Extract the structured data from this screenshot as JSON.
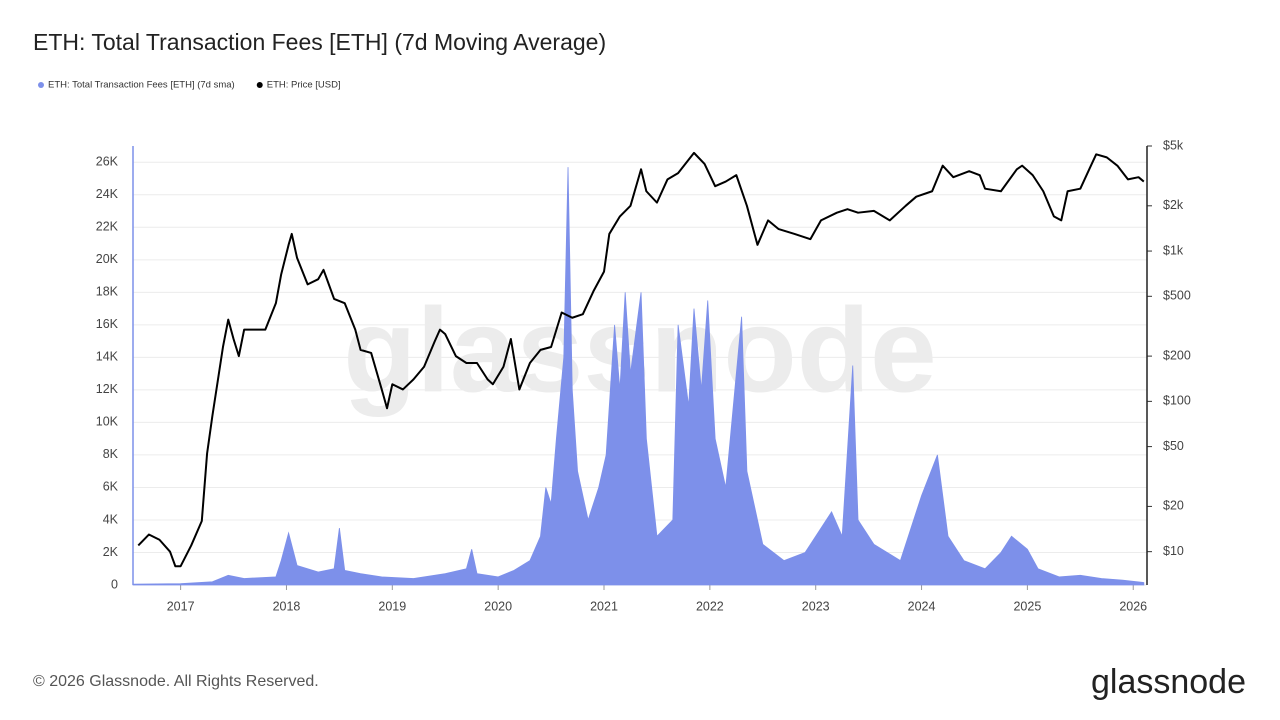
{
  "chart_data": {
    "type": "line",
    "title": "ETH: Total Transaction Fees [ETH] (7d Moving Average)",
    "watermark": "glassnode",
    "footer": "© 2026 Glassnode. All Rights Reserved.",
    "logo": "glassnode",
    "xlim": [
      2016.55,
      2026.13
    ],
    "xticks": [
      2017,
      2018,
      2019,
      2020,
      2021,
      2022,
      2023,
      2024,
      2025,
      2026
    ],
    "ylim": [
      0,
      27000
    ],
    "yticks": [
      {
        "value": 0,
        "label": "0"
      },
      {
        "value": 2000,
        "label": "2K"
      },
      {
        "value": 4000,
        "label": "4K"
      },
      {
        "value": 6000,
        "label": "6K"
      },
      {
        "value": 8000,
        "label": "8K"
      },
      {
        "value": 10000,
        "label": "10K"
      },
      {
        "value": 12000,
        "label": "12K"
      },
      {
        "value": 14000,
        "label": "14K"
      },
      {
        "value": 16000,
        "label": "16K"
      },
      {
        "value": 18000,
        "label": "18K"
      },
      {
        "value": 20000,
        "label": "20K"
      },
      {
        "value": 22000,
        "label": "22K"
      },
      {
        "value": 24000,
        "label": "24K"
      },
      {
        "value": 26000,
        "label": "26K"
      }
    ],
    "y2lim": [
      6,
      5000
    ],
    "y2log": true,
    "y2ticks": [
      {
        "value": 10,
        "label": "$10"
      },
      {
        "value": 20,
        "label": "$20"
      },
      {
        "value": 50,
        "label": "$50"
      },
      {
        "value": 100,
        "label": "$100"
      },
      {
        "value": 200,
        "label": "$200"
      },
      {
        "value": 500,
        "label": "$500"
      },
      {
        "value": 1000,
        "label": "$1k"
      },
      {
        "value": 2000,
        "label": "$2k"
      },
      {
        "value": 5000,
        "label": "$5k"
      }
    ],
    "grid": true,
    "series": [
      {
        "name": "ETH: Total Transaction Fees [ETH] (7d sma)",
        "color": "#7d90ea",
        "type": "area",
        "x": [
          2016.55,
          2017.0,
          2017.3,
          2017.45,
          2017.6,
          2017.9,
          2017.95,
          2018.02,
          2018.1,
          2018.3,
          2018.45,
          2018.5,
          2018.55,
          2018.7,
          2018.9,
          2019.2,
          2019.5,
          2019.7,
          2019.75,
          2019.8,
          2020.0,
          2020.15,
          2020.3,
          2020.4,
          2020.45,
          2020.5,
          2020.55,
          2020.62,
          2020.66,
          2020.7,
          2020.75,
          2020.85,
          2020.95,
          2021.02,
          2021.1,
          2021.15,
          2021.2,
          2021.25,
          2021.35,
          2021.4,
          2021.5,
          2021.65,
          2021.7,
          2021.8,
          2021.85,
          2021.92,
          2021.98,
          2022.05,
          2022.15,
          2022.3,
          2022.35,
          2022.5,
          2022.7,
          2022.9,
          2023.05,
          2023.15,
          2023.25,
          2023.35,
          2023.4,
          2023.55,
          2023.8,
          2023.9,
          2024.0,
          2024.15,
          2024.25,
          2024.4,
          2024.6,
          2024.75,
          2024.85,
          2025.0,
          2025.1,
          2025.3,
          2025.5,
          2025.7,
          2025.9,
          2026.1
        ],
        "values": [
          50,
          80,
          200,
          600,
          400,
          500,
          1500,
          3200,
          1200,
          800,
          1000,
          3500,
          900,
          700,
          500,
          400,
          700,
          1000,
          2200,
          700,
          500,
          900,
          1500,
          3000,
          6000,
          5000,
          9000,
          14000,
          25700,
          12000,
          7000,
          4000,
          6000,
          8000,
          16000,
          12000,
          18000,
          13000,
          18000,
          9000,
          3000,
          4000,
          16000,
          11000,
          17000,
          12000,
          17500,
          9000,
          6000,
          16500,
          7000,
          2500,
          1500,
          2000,
          3500,
          4500,
          3000,
          13500,
          4000,
          2500,
          1500,
          3500,
          5500,
          8000,
          3000,
          1500,
          1000,
          2000,
          3000,
          2200,
          1000,
          500,
          600,
          400,
          300,
          150
        ]
      },
      {
        "name": "ETH: Price [USD]",
        "color": "#000000",
        "type": "line",
        "axis": "y2",
        "x": [
          2016.6,
          2016.7,
          2016.8,
          2016.9,
          2016.95,
          2017.0,
          2017.1,
          2017.2,
          2017.25,
          2017.3,
          2017.4,
          2017.45,
          2017.5,
          2017.55,
          2017.6,
          2017.7,
          2017.8,
          2017.9,
          2017.95,
          2018.02,
          2018.05,
          2018.1,
          2018.2,
          2018.3,
          2018.35,
          2018.4,
          2018.45,
          2018.55,
          2018.65,
          2018.7,
          2018.8,
          2018.9,
          2018.95,
          2019.0,
          2019.1,
          2019.2,
          2019.3,
          2019.4,
          2019.45,
          2019.5,
          2019.6,
          2019.7,
          2019.8,
          2019.9,
          2019.95,
          2020.05,
          2020.12,
          2020.2,
          2020.3,
          2020.4,
          2020.5,
          2020.6,
          2020.7,
          2020.8,
          2020.9,
          2021.0,
          2021.05,
          2021.15,
          2021.25,
          2021.35,
          2021.4,
          2021.5,
          2021.6,
          2021.7,
          2021.85,
          2021.95,
          2022.05,
          2022.15,
          2022.25,
          2022.35,
          2022.45,
          2022.55,
          2022.65,
          2022.8,
          2022.95,
          2023.05,
          2023.2,
          2023.3,
          2023.4,
          2023.55,
          2023.7,
          2023.85,
          2023.95,
          2024.1,
          2024.2,
          2024.3,
          2024.45,
          2024.55,
          2024.6,
          2024.75,
          2024.9,
          2024.95,
          2025.05,
          2025.15,
          2025.25,
          2025.32,
          2025.38,
          2025.5,
          2025.6,
          2025.65,
          2025.75,
          2025.85,
          2025.95,
          2026.05,
          2026.1
        ],
        "values": [
          11,
          13,
          12,
          10,
          8,
          8,
          11,
          16,
          45,
          80,
          230,
          350,
          260,
          200,
          300,
          300,
          300,
          450,
          700,
          1100,
          1300,
          900,
          600,
          650,
          750,
          600,
          480,
          450,
          300,
          220,
          210,
          120,
          90,
          130,
          120,
          140,
          170,
          250,
          300,
          280,
          200,
          180,
          180,
          140,
          130,
          170,
          260,
          120,
          180,
          220,
          230,
          390,
          360,
          380,
          540,
          730,
          1300,
          1700,
          2000,
          3500,
          2500,
          2100,
          3000,
          3300,
          4500,
          3800,
          2700,
          2900,
          3200,
          2000,
          1100,
          1600,
          1400,
          1300,
          1200,
          1600,
          1800,
          1900,
          1800,
          1850,
          1600,
          2000,
          2300,
          2500,
          3700,
          3100,
          3400,
          3200,
          2600,
          2500,
          3500,
          3700,
          3200,
          2500,
          1700,
          1600,
          2500,
          2600,
          3700,
          4400,
          4200,
          3700,
          3000,
          3100,
          2900
        ]
      }
    ]
  }
}
